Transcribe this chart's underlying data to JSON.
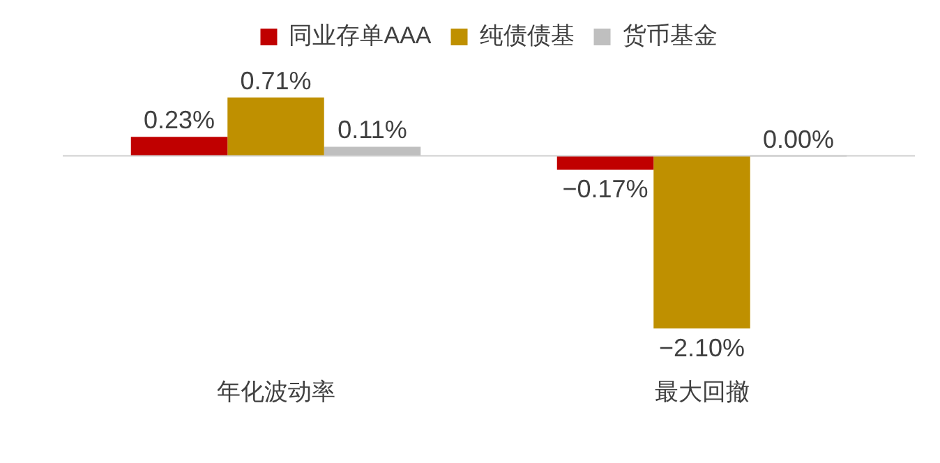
{
  "chart_data": {
    "type": "bar",
    "categories": [
      "年化波动率",
      "最大回撤"
    ],
    "series": [
      {
        "name": "同业存单AAA",
        "color": "#c00000",
        "values": [
          0.23,
          -0.17
        ],
        "value_labels": [
          "0.23%",
          "−0.17%"
        ]
      },
      {
        "name": "纯债债基",
        "color": "#bf9000",
        "values": [
          0.71,
          -2.1
        ],
        "value_labels": [
          "0.71%",
          "−2.10%"
        ]
      },
      {
        "name": "货币基金",
        "color": "#bfbfbf",
        "values": [
          0.11,
          0.0
        ],
        "value_labels": [
          "0.11%",
          "0.00%"
        ]
      }
    ],
    "legend": "top",
    "grid": false
  }
}
